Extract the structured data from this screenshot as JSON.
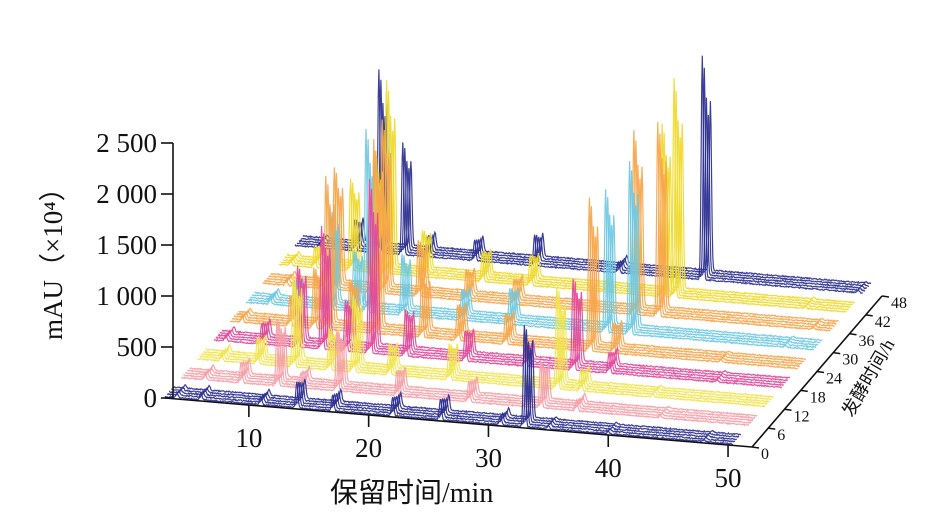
{
  "chart_data": {
    "type": "3d-waterfall-line",
    "title": "",
    "xlabel": "保留时间/min",
    "ylabel": "mAU（×10⁴）",
    "zlabel": "发酵时间/h",
    "x_ticks": [
      "10",
      "20",
      "30",
      "40",
      "50"
    ],
    "x_tick_values": [
      10,
      20,
      30,
      40,
      50
    ],
    "xlim": [
      3,
      52
    ],
    "y_ticks": [
      "0",
      "500",
      "1 000",
      "1 500",
      "2 000",
      "2 500"
    ],
    "y_tick_values": [
      0,
      500,
      1000,
      1500,
      2000,
      2500
    ],
    "ylim": [
      0,
      2500
    ],
    "z_ticks": [
      "0",
      "6",
      "12",
      "18",
      "24",
      "30",
      "36",
      "42",
      "48"
    ],
    "z_tick_values": [
      0,
      6,
      12,
      18,
      24,
      30,
      36,
      42,
      48
    ],
    "zlim": [
      0,
      48
    ],
    "series_colors": [
      "#2b2f8f",
      "#f5a0a8",
      "#f0e44c",
      "#e04a9a",
      "#f6a54a",
      "#6ec9e2",
      "#f6a54a",
      "#efd92a",
      "#2b2f8f"
    ],
    "series": [
      {
        "name": "0 h",
        "peaks": [
          [
            4,
            40
          ],
          [
            6,
            60
          ],
          [
            11,
            80
          ],
          [
            14,
            250
          ],
          [
            17,
            150
          ],
          [
            22,
            180
          ],
          [
            26,
            200
          ],
          [
            31,
            90
          ],
          [
            33,
            1000
          ],
          [
            35,
            30
          ],
          [
            40,
            20
          ],
          [
            48,
            20
          ]
        ]
      },
      {
        "name": "6 h",
        "peaks": [
          [
            5,
            70
          ],
          [
            8,
            200
          ],
          [
            11,
            650
          ],
          [
            13,
            150
          ],
          [
            16,
            600
          ],
          [
            21,
            250
          ],
          [
            27,
            200
          ],
          [
            33,
            450
          ],
          [
            36,
            100
          ],
          [
            43,
            20
          ]
        ]
      },
      {
        "name": "12 h",
        "peaks": [
          [
            5,
            80
          ],
          [
            8,
            250
          ],
          [
            11,
            900
          ],
          [
            14,
            400
          ],
          [
            16,
            750
          ],
          [
            19,
            300
          ],
          [
            24,
            350
          ],
          [
            33,
            1000
          ],
          [
            35,
            200
          ],
          [
            41,
            30
          ]
        ]
      },
      {
        "name": "18 h",
        "peaks": [
          [
            4,
            60
          ],
          [
            7,
            200
          ],
          [
            10,
            800
          ],
          [
            12,
            1200
          ],
          [
            14,
            500
          ],
          [
            16,
            1700
          ],
          [
            19,
            450
          ],
          [
            24,
            300
          ],
          [
            29,
            200
          ],
          [
            33,
            900
          ],
          [
            36,
            200
          ],
          [
            45,
            20
          ]
        ]
      },
      {
        "name": "24 h",
        "peaks": [
          [
            4,
            60
          ],
          [
            8,
            300
          ],
          [
            10,
            600
          ],
          [
            11,
            1500
          ],
          [
            13,
            500
          ],
          [
            15,
            1900
          ],
          [
            19,
            600
          ],
          [
            22,
            350
          ],
          [
            26,
            300
          ],
          [
            33,
            1500
          ],
          [
            35,
            300
          ],
          [
            44,
            20
          ]
        ]
      },
      {
        "name": "30 h",
        "peaks": [
          [
            5,
            80
          ],
          [
            7,
            250
          ],
          [
            10,
            1000
          ],
          [
            12,
            600
          ],
          [
            13,
            1800
          ],
          [
            16,
            600
          ],
          [
            21,
            300
          ],
          [
            25,
            350
          ],
          [
            33,
            1400
          ],
          [
            35,
            1700
          ],
          [
            48,
            20
          ]
        ]
      },
      {
        "name": "36 h",
        "peaks": [
          [
            5,
            60
          ],
          [
            8,
            200
          ],
          [
            9,
            1200
          ],
          [
            12,
            500
          ],
          [
            13,
            1700
          ],
          [
            16,
            550
          ],
          [
            20,
            300
          ],
          [
            24,
            250
          ],
          [
            34,
            1800
          ],
          [
            36,
            1900
          ],
          [
            49,
            20
          ]
        ]
      },
      {
        "name": "42 h",
        "peaks": [
          [
            4,
            60
          ],
          [
            6,
            200
          ],
          [
            9,
            900
          ],
          [
            11,
            1200
          ],
          [
            12,
            1900
          ],
          [
            15,
            450
          ],
          [
            20,
            300
          ],
          [
            24,
            300
          ],
          [
            35,
            1700
          ],
          [
            36,
            2150
          ],
          [
            47,
            20
          ]
        ]
      },
      {
        "name": "48 h",
        "peaks": [
          [
            5,
            40
          ],
          [
            8,
            300
          ],
          [
            10,
            1800
          ],
          [
            12,
            1100
          ],
          [
            14,
            200
          ],
          [
            18,
            200
          ],
          [
            23,
            300
          ],
          [
            30,
            100
          ],
          [
            37,
            2200
          ],
          [
            50,
            20
          ]
        ]
      }
    ]
  }
}
